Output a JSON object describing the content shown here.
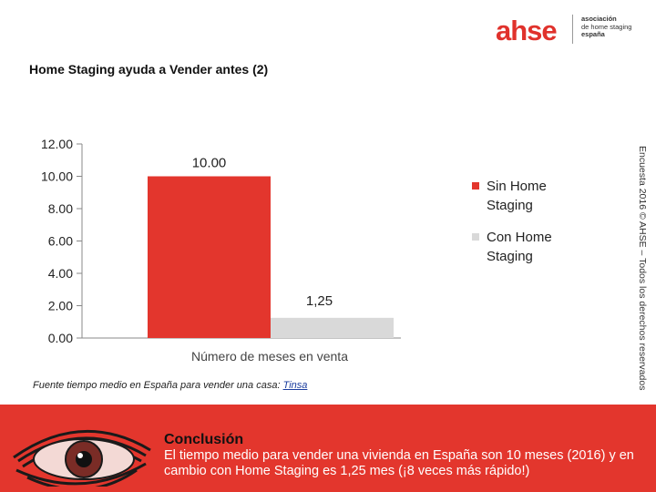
{
  "logo": {
    "main": "ahse",
    "lines": [
      "asociación",
      "de home staging",
      "españa"
    ]
  },
  "title": "Home Staging ayuda a Vender antes (2)",
  "side_note": "Encuesta 2016 © AHSE – Todos los derechos reservados",
  "source": {
    "text": "Fuente tiempo medio en España para vender una casa: ",
    "link": "Tinsa"
  },
  "conclusion": {
    "title": "Conclusión",
    "text": "El tiempo medio para vender una vivienda en España son 10 meses (2016) y en cambio con Home Staging es 1,25 mes (¡8 veces más rápido!)"
  },
  "chart_data": {
    "type": "bar",
    "categories": [
      "Número de meses en venta"
    ],
    "xlabel": "Número de meses en venta",
    "ylim": [
      0,
      12
    ],
    "yticks": [
      "0.00",
      "2.00",
      "4.00",
      "6.00",
      "8.00",
      "10.00",
      "12.00"
    ],
    "legend_position": "right",
    "series": [
      {
        "name": "Sin Home Staging",
        "values": [
          10
        ],
        "label": "10.00",
        "color": "#e3362d"
      },
      {
        "name": "Con Home Staging",
        "values": [
          1.25
        ],
        "label": "1,25",
        "color": "#d9d9d9"
      }
    ],
    "grid": false
  }
}
